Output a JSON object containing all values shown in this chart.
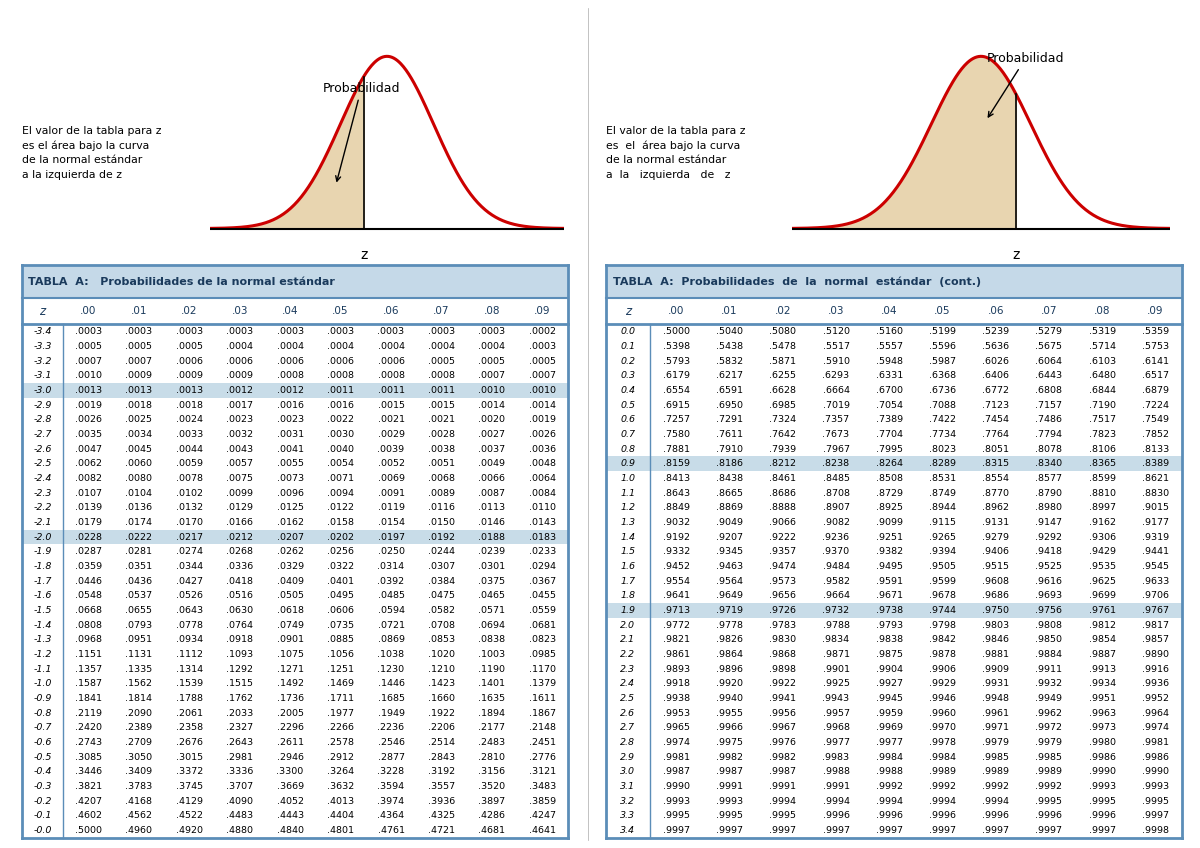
{
  "title_left": "TABLA  A:   Probabilidades de la normal estándar",
  "title_right": "TABLA  A:  Probabilidades  de  la  normal  estándar  (cont.)",
  "col_headers": [
    ".00",
    ".01",
    ".02",
    ".03",
    ".04",
    ".05",
    ".06",
    ".07",
    ".08",
    ".09"
  ],
  "description_left": "El valor de la tabla para z\nes el área bajo la curva\nde la normal estándar\na la izquierda de z",
  "description_right": "El valor de la tabla para z\nes  el  área bajo la curva\nde la normal estándar\na  la   izquierda   de   z",
  "probabilidad_label": "Probabilidad",
  "header_bg": "#c5d9e8",
  "border_color": "#5b8db8",
  "diagram_bg": "#dce6dc",
  "fill_color": "#e8d5b0",
  "curve_color": "#cc0000",
  "title_color": "#1a3a5c",
  "sep_color": "#c8dce8",
  "left_table": {
    "rows": [
      [
        "-3.4",
        ".0003",
        ".0003",
        ".0003",
        ".0003",
        ".0003",
        ".0003",
        ".0003",
        ".0003",
        ".0003",
        ".0002"
      ],
      [
        "-3.3",
        ".0005",
        ".0005",
        ".0005",
        ".0004",
        ".0004",
        ".0004",
        ".0004",
        ".0004",
        ".0004",
        ".0003"
      ],
      [
        "-3.2",
        ".0007",
        ".0007",
        ".0006",
        ".0006",
        ".0006",
        ".0006",
        ".0006",
        ".0005",
        ".0005",
        ".0005"
      ],
      [
        "-3.1",
        ".0010",
        ".0009",
        ".0009",
        ".0009",
        ".0008",
        ".0008",
        ".0008",
        ".0008",
        ".0007",
        ".0007"
      ],
      [
        "-3.0",
        ".0013",
        ".0013",
        ".0013",
        ".0012",
        ".0012",
        ".0011",
        ".0011",
        ".0011",
        ".0010",
        ".0010"
      ],
      [
        "-2.9",
        ".0019",
        ".0018",
        ".0018",
        ".0017",
        ".0016",
        ".0016",
        ".0015",
        ".0015",
        ".0014",
        ".0014"
      ],
      [
        "-2.8",
        ".0026",
        ".0025",
        ".0024",
        ".0023",
        ".0023",
        ".0022",
        ".0021",
        ".0021",
        ".0020",
        ".0019"
      ],
      [
        "-2.7",
        ".0035",
        ".0034",
        ".0033",
        ".0032",
        ".0031",
        ".0030",
        ".0029",
        ".0028",
        ".0027",
        ".0026"
      ],
      [
        "-2.6",
        ".0047",
        ".0045",
        ".0044",
        ".0043",
        ".0041",
        ".0040",
        ".0039",
        ".0038",
        ".0037",
        ".0036"
      ],
      [
        "-2.5",
        ".0062",
        ".0060",
        ".0059",
        ".0057",
        ".0055",
        ".0054",
        ".0052",
        ".0051",
        ".0049",
        ".0048"
      ],
      [
        "-2.4",
        ".0082",
        ".0080",
        ".0078",
        ".0075",
        ".0073",
        ".0071",
        ".0069",
        ".0068",
        ".0066",
        ".0064"
      ],
      [
        "-2.3",
        ".0107",
        ".0104",
        ".0102",
        ".0099",
        ".0096",
        ".0094",
        ".0091",
        ".0089",
        ".0087",
        ".0084"
      ],
      [
        "-2.2",
        ".0139",
        ".0136",
        ".0132",
        ".0129",
        ".0125",
        ".0122",
        ".0119",
        ".0116",
        ".0113",
        ".0110"
      ],
      [
        "-2.1",
        ".0179",
        ".0174",
        ".0170",
        ".0166",
        ".0162",
        ".0158",
        ".0154",
        ".0150",
        ".0146",
        ".0143"
      ],
      [
        "-2.0",
        ".0228",
        ".0222",
        ".0217",
        ".0212",
        ".0207",
        ".0202",
        ".0197",
        ".0192",
        ".0188",
        ".0183"
      ],
      [
        "-1.9",
        ".0287",
        ".0281",
        ".0274",
        ".0268",
        ".0262",
        ".0256",
        ".0250",
        ".0244",
        ".0239",
        ".0233"
      ],
      [
        "-1.8",
        ".0359",
        ".0351",
        ".0344",
        ".0336",
        ".0329",
        ".0322",
        ".0314",
        ".0307",
        ".0301",
        ".0294"
      ],
      [
        "-1.7",
        ".0446",
        ".0436",
        ".0427",
        ".0418",
        ".0409",
        ".0401",
        ".0392",
        ".0384",
        ".0375",
        ".0367"
      ],
      [
        "-1.6",
        ".0548",
        ".0537",
        ".0526",
        ".0516",
        ".0505",
        ".0495",
        ".0485",
        ".0475",
        ".0465",
        ".0455"
      ],
      [
        "-1.5",
        ".0668",
        ".0655",
        ".0643",
        ".0630",
        ".0618",
        ".0606",
        ".0594",
        ".0582",
        ".0571",
        ".0559"
      ],
      [
        "-1.4",
        ".0808",
        ".0793",
        ".0778",
        ".0764",
        ".0749",
        ".0735",
        ".0721",
        ".0708",
        ".0694",
        ".0681"
      ],
      [
        "-1.3",
        ".0968",
        ".0951",
        ".0934",
        ".0918",
        ".0901",
        ".0885",
        ".0869",
        ".0853",
        ".0838",
        ".0823"
      ],
      [
        "-1.2",
        ".1151",
        ".1131",
        ".1112",
        ".1093",
        ".1075",
        ".1056",
        ".1038",
        ".1020",
        ".1003",
        ".0985"
      ],
      [
        "-1.1",
        ".1357",
        ".1335",
        ".1314",
        ".1292",
        ".1271",
        ".1251",
        ".1230",
        ".1210",
        ".1190",
        ".1170"
      ],
      [
        "-1.0",
        ".1587",
        ".1562",
        ".1539",
        ".1515",
        ".1492",
        ".1469",
        ".1446",
        ".1423",
        ".1401",
        ".1379"
      ],
      [
        "-0.9",
        ".1841",
        ".1814",
        ".1788",
        ".1762",
        ".1736",
        ".1711",
        ".1685",
        ".1660",
        ".1635",
        ".1611"
      ],
      [
        "-0.8",
        ".2119",
        ".2090",
        ".2061",
        ".2033",
        ".2005",
        ".1977",
        ".1949",
        ".1922",
        ".1894",
        ".1867"
      ],
      [
        "-0.7",
        ".2420",
        ".2389",
        ".2358",
        ".2327",
        ".2296",
        ".2266",
        ".2236",
        ".2206",
        ".2177",
        ".2148"
      ],
      [
        "-0.6",
        ".2743",
        ".2709",
        ".2676",
        ".2643",
        ".2611",
        ".2578",
        ".2546",
        ".2514",
        ".2483",
        ".2451"
      ],
      [
        "-0.5",
        ".3085",
        ".3050",
        ".3015",
        ".2981",
        ".2946",
        ".2912",
        ".2877",
        ".2843",
        ".2810",
        ".2776"
      ],
      [
        "-0.4",
        ".3446",
        ".3409",
        ".3372",
        ".3336",
        ".3300",
        ".3264",
        ".3228",
        ".3192",
        ".3156",
        ".3121"
      ],
      [
        "-0.3",
        ".3821",
        ".3783",
        ".3745",
        ".3707",
        ".3669",
        ".3632",
        ".3594",
        ".3557",
        ".3520",
        ".3483"
      ],
      [
        "-0.2",
        ".4207",
        ".4168",
        ".4129",
        ".4090",
        ".4052",
        ".4013",
        ".3974",
        ".3936",
        ".3897",
        ".3859"
      ],
      [
        "-0.1",
        ".4602",
        ".4562",
        ".4522",
        ".4483",
        ".4443",
        ".4404",
        ".4364",
        ".4325",
        ".4286",
        ".4247"
      ],
      [
        "-0.0",
        ".5000",
        ".4960",
        ".4920",
        ".4880",
        ".4840",
        ".4801",
        ".4761",
        ".4721",
        ".4681",
        ".4641"
      ]
    ],
    "separator_rows": [
      4,
      14
    ]
  },
  "right_table": {
    "rows": [
      [
        "0.0",
        ".5000",
        ".5040",
        ".5080",
        ".5120",
        ".5160",
        ".5199",
        ".5239",
        ".5279",
        ".5319",
        ".5359"
      ],
      [
        "0.1",
        ".5398",
        ".5438",
        ".5478",
        ".5517",
        ".5557",
        ".5596",
        ".5636",
        ".5675",
        ".5714",
        ".5753"
      ],
      [
        "0.2",
        ".5793",
        ".5832",
        ".5871",
        ".5910",
        ".5948",
        ".5987",
        ".6026",
        ".6064",
        ".6103",
        ".6141"
      ],
      [
        "0.3",
        ".6179",
        ".6217",
        ".6255",
        ".6293",
        ".6331",
        ".6368",
        ".6406",
        ".6443",
        ".6480",
        ".6517"
      ],
      [
        "0.4",
        ".6554",
        ".6591",
        ".6628",
        ".6664",
        ".6700",
        ".6736",
        ".6772",
        ".6808",
        ".6844",
        ".6879"
      ],
      [
        "0.5",
        ".6915",
        ".6950",
        ".6985",
        ".7019",
        ".7054",
        ".7088",
        ".7123",
        ".7157",
        ".7190",
        ".7224"
      ],
      [
        "0.6",
        ".7257",
        ".7291",
        ".7324",
        ".7357",
        ".7389",
        ".7422",
        ".7454",
        ".7486",
        ".7517",
        ".7549"
      ],
      [
        "0.7",
        ".7580",
        ".7611",
        ".7642",
        ".7673",
        ".7704",
        ".7734",
        ".7764",
        ".7794",
        ".7823",
        ".7852"
      ],
      [
        "0.8",
        ".7881",
        ".7910",
        ".7939",
        ".7967",
        ".7995",
        ".8023",
        ".8051",
        ".8078",
        ".8106",
        ".8133"
      ],
      [
        "0.9",
        ".8159",
        ".8186",
        ".8212",
        ".8238",
        ".8264",
        ".8289",
        ".8315",
        ".8340",
        ".8365",
        ".8389"
      ],
      [
        "1.0",
        ".8413",
        ".8438",
        ".8461",
        ".8485",
        ".8508",
        ".8531",
        ".8554",
        ".8577",
        ".8599",
        ".8621"
      ],
      [
        "1.1",
        ".8643",
        ".8665",
        ".8686",
        ".8708",
        ".8729",
        ".8749",
        ".8770",
        ".8790",
        ".8810",
        ".8830"
      ],
      [
        "1.2",
        ".8849",
        ".8869",
        ".8888",
        ".8907",
        ".8925",
        ".8944",
        ".8962",
        ".8980",
        ".8997",
        ".9015"
      ],
      [
        "1.3",
        ".9032",
        ".9049",
        ".9066",
        ".9082",
        ".9099",
        ".9115",
        ".9131",
        ".9147",
        ".9162",
        ".9177"
      ],
      [
        "1.4",
        ".9192",
        ".9207",
        ".9222",
        ".9236",
        ".9251",
        ".9265",
        ".9279",
        ".9292",
        ".9306",
        ".9319"
      ],
      [
        "1.5",
        ".9332",
        ".9345",
        ".9357",
        ".9370",
        ".9382",
        ".9394",
        ".9406",
        ".9418",
        ".9429",
        ".9441"
      ],
      [
        "1.6",
        ".9452",
        ".9463",
        ".9474",
        ".9484",
        ".9495",
        ".9505",
        ".9515",
        ".9525",
        ".9535",
        ".9545"
      ],
      [
        "1.7",
        ".9554",
        ".9564",
        ".9573",
        ".9582",
        ".9591",
        ".9599",
        ".9608",
        ".9616",
        ".9625",
        ".9633"
      ],
      [
        "1.8",
        ".9641",
        ".9649",
        ".9656",
        ".9664",
        ".9671",
        ".9678",
        ".9686",
        ".9693",
        ".9699",
        ".9706"
      ],
      [
        "1.9",
        ".9713",
        ".9719",
        ".9726",
        ".9732",
        ".9738",
        ".9744",
        ".9750",
        ".9756",
        ".9761",
        ".9767"
      ],
      [
        "2.0",
        ".9772",
        ".9778",
        ".9783",
        ".9788",
        ".9793",
        ".9798",
        ".9803",
        ".9808",
        ".9812",
        ".9817"
      ],
      [
        "2.1",
        ".9821",
        ".9826",
        ".9830",
        ".9834",
        ".9838",
        ".9842",
        ".9846",
        ".9850",
        ".9854",
        ".9857"
      ],
      [
        "2.2",
        ".9861",
        ".9864",
        ".9868",
        ".9871",
        ".9875",
        ".9878",
        ".9881",
        ".9884",
        ".9887",
        ".9890"
      ],
      [
        "2.3",
        ".9893",
        ".9896",
        ".9898",
        ".9901",
        ".9904",
        ".9906",
        ".9909",
        ".9911",
        ".9913",
        ".9916"
      ],
      [
        "2.4",
        ".9918",
        ".9920",
        ".9922",
        ".9925",
        ".9927",
        ".9929",
        ".9931",
        ".9932",
        ".9934",
        ".9936"
      ],
      [
        "2.5",
        ".9938",
        ".9940",
        ".9941",
        ".9943",
        ".9945",
        ".9946",
        ".9948",
        ".9949",
        ".9951",
        ".9952"
      ],
      [
        "2.6",
        ".9953",
        ".9955",
        ".9956",
        ".9957",
        ".9959",
        ".9960",
        ".9961",
        ".9962",
        ".9963",
        ".9964"
      ],
      [
        "2.7",
        ".9965",
        ".9966",
        ".9967",
        ".9968",
        ".9969",
        ".9970",
        ".9971",
        ".9972",
        ".9973",
        ".9974"
      ],
      [
        "2.8",
        ".9974",
        ".9975",
        ".9976",
        ".9977",
        ".9977",
        ".9978",
        ".9979",
        ".9979",
        ".9980",
        ".9981"
      ],
      [
        "2.9",
        ".9981",
        ".9982",
        ".9982",
        ".9983",
        ".9984",
        ".9984",
        ".9985",
        ".9985",
        ".9986",
        ".9986"
      ],
      [
        "3.0",
        ".9987",
        ".9987",
        ".9987",
        ".9988",
        ".9988",
        ".9989",
        ".9989",
        ".9989",
        ".9990",
        ".9990"
      ],
      [
        "3.1",
        ".9990",
        ".9991",
        ".9991",
        ".9991",
        ".9992",
        ".9992",
        ".9992",
        ".9992",
        ".9993",
        ".9993"
      ],
      [
        "3.2",
        ".9993",
        ".9993",
        ".9994",
        ".9994",
        ".9994",
        ".9994",
        ".9994",
        ".9995",
        ".9995",
        ".9995"
      ],
      [
        "3.3",
        ".9995",
        ".9995",
        ".9995",
        ".9996",
        ".9996",
        ".9996",
        ".9996",
        ".9996",
        ".9996",
        ".9997"
      ],
      [
        "3.4",
        ".9997",
        ".9997",
        ".9997",
        ".9997",
        ".9997",
        ".9997",
        ".9997",
        ".9997",
        ".9997",
        ".9998"
      ]
    ],
    "separator_rows": [
      9,
      19
    ]
  }
}
